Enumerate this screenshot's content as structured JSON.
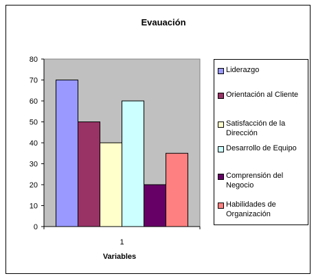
{
  "chart_data": {
    "type": "bar",
    "title": "Evauación",
    "xlabel": "Variables",
    "ylabel": "",
    "categories": [
      "1"
    ],
    "ylim": [
      0,
      80
    ],
    "yticks": [
      0,
      10,
      20,
      30,
      40,
      50,
      60,
      70,
      80
    ],
    "grid": false,
    "plot_background": "#c0c0c0",
    "legend_position": "right",
    "series": [
      {
        "name": "Liderazgo",
        "values": [
          70
        ],
        "color": "#9999ff"
      },
      {
        "name": "Orientación al Cliente",
        "values": [
          50
        ],
        "color": "#993366"
      },
      {
        "name": "Satisfacción de la Dirección",
        "values": [
          40
        ],
        "color": "#ffffcc"
      },
      {
        "name": "Desarrollo de Equipo",
        "values": [
          60
        ],
        "color": "#ccffff"
      },
      {
        "name": "Comprensión del Negocio",
        "values": [
          20
        ],
        "color": "#660066"
      },
      {
        "name": "Habilidades de Organización",
        "values": [
          35
        ],
        "color": "#ff8080"
      }
    ]
  }
}
